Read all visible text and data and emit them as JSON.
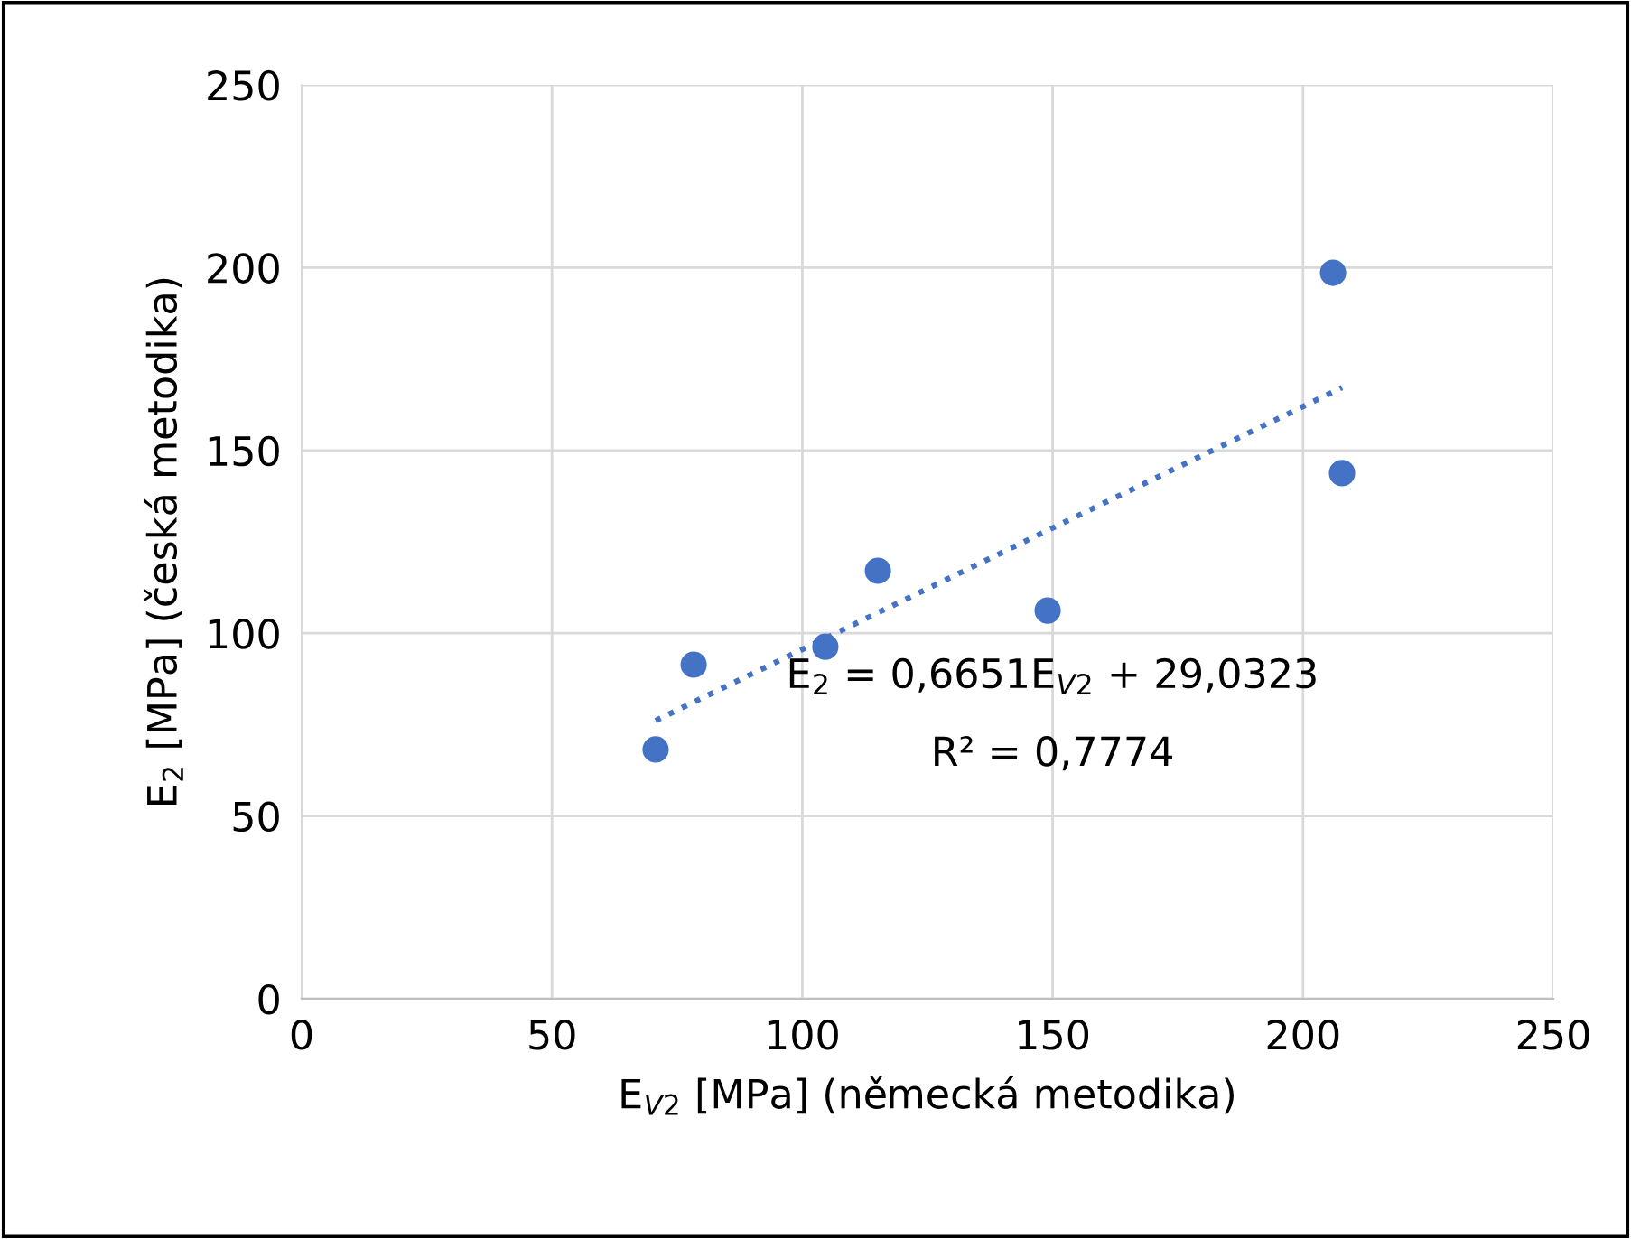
{
  "chart_data": {
    "type": "scatter",
    "xlabel": "E$_{V2}$ [MPa] (německá metodika)",
    "ylabel": "E$_{2}$ [MPa] (česká metodika)",
    "series": [
      {
        "color": "#4472c4",
        "marker": "circle",
        "x": [
          70.7,
          78.3,
          104.6,
          115.1,
          149,
          206,
          207.8
        ],
        "values": [
          68.2,
          91.4,
          96.3,
          117.1,
          106.2,
          198.6,
          143.8
        ]
      },
      {
        "type": "line",
        "color": "#4472c4",
        "line_style": "dotted",
        "x": [
          70.7,
          207.8
        ],
        "values": [
          76.1,
          167.2
        ]
      }
    ],
    "annotations": [
      "E$_{2}$ = 0,6651E$_{V2}$ + 29,0323",
      "R² = 0,7774"
    ],
    "xlim": [
      0,
      250
    ],
    "ylim": [
      0,
      250
    ],
    "xticks": [
      0,
      50,
      100,
      150,
      200,
      250
    ],
    "yticks": [
      0,
      50,
      100,
      150,
      200,
      250
    ],
    "grid": true
  }
}
